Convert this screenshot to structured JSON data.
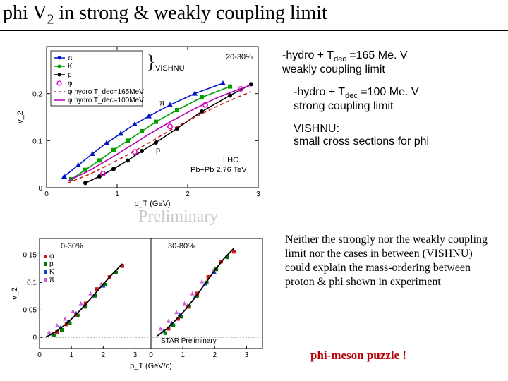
{
  "title": {
    "pre": "phi V",
    "sub": "2",
    "post": " in strong & weakly coupling limit"
  },
  "notes": {
    "weak": {
      "line1_pre": "-hydro + T",
      "line1_sub": "dec",
      "line1_post": " =165 Me. V",
      "line2": "weakly coupling limit"
    },
    "strong": {
      "line1_pre": "-hydro + T",
      "line1_sub": "dec",
      "line1_post": " =100 Me. V",
      "line2": "strong coupling limit"
    },
    "vishnu": {
      "label": "VISHNU:",
      "text": "small cross sections for phi"
    }
  },
  "preliminary": "Preliminary",
  "paragraph": "Neither the strongly nor the weakly coupling limit nor the cases in between (VISHNU) could explain the mass-ordering between proton & phi shown in experiment",
  "puzzle": "phi-meson puzzle !",
  "top_chart": {
    "type": "line+scatter",
    "xlim": [
      0,
      3
    ],
    "xticks": [
      0,
      1,
      2,
      3
    ],
    "ylim": [
      0,
      0.3
    ],
    "yticks": [
      0,
      0.1,
      0.2
    ],
    "xlabel": "p_T (GeV)",
    "ylabel": "v_2",
    "legend_box": {
      "items": [
        "π",
        "K",
        "p",
        "φ",
        "φ hydro T_dec=165MeV",
        "φ hydro T_dec=100MeV"
      ]
    },
    "vishnu_text": "VISHNU",
    "centrality": "20-30%",
    "annot": {
      "pi": "π",
      "p": "p"
    },
    "footer1": "LHC",
    "footer2": "Pb+Pb 2.76 TeV",
    "colors": {
      "pi": "#0018c8",
      "K": "#00a000",
      "p": "#000000",
      "phi_marker": "#e000c8",
      "phi_dash": "#c81e1e",
      "phi_solid": "#b800b8",
      "axis": "#000000",
      "box": "#000000"
    },
    "series": {
      "pi": {
        "x": [
          0.25,
          0.45,
          0.65,
          0.85,
          1.05,
          1.25,
          1.45,
          1.75,
          2.1,
          2.5
        ],
        "y": [
          0.024,
          0.048,
          0.072,
          0.095,
          0.115,
          0.135,
          0.152,
          0.176,
          0.2,
          0.222
        ]
      },
      "K": {
        "x": [
          0.35,
          0.55,
          0.75,
          0.95,
          1.15,
          1.35,
          1.55,
          1.85,
          2.2,
          2.6
        ],
        "y": [
          0.018,
          0.038,
          0.058,
          0.08,
          0.1,
          0.12,
          0.14,
          0.165,
          0.192,
          0.215
        ]
      },
      "p": {
        "x": [
          0.55,
          0.75,
          0.95,
          1.15,
          1.35,
          1.55,
          1.85,
          2.2,
          2.6,
          2.9
        ],
        "y": [
          0.01,
          0.024,
          0.04,
          0.058,
          0.078,
          0.096,
          0.126,
          0.162,
          0.196,
          0.22
        ]
      },
      "phi_pts": {
        "x": [
          0.8,
          1.25,
          1.75,
          2.25,
          2.75
        ],
        "y": [
          0.03,
          0.076,
          0.13,
          0.176,
          0.21
        ]
      },
      "phi_dash": {
        "x": [
          0.3,
          0.6,
          0.9,
          1.2,
          1.5,
          1.8,
          2.1,
          2.4,
          2.7,
          2.9
        ],
        "y": [
          0.01,
          0.028,
          0.05,
          0.074,
          0.1,
          0.126,
          0.15,
          0.172,
          0.192,
          0.204
        ]
      },
      "phi_solid": {
        "x": [
          0.3,
          0.6,
          0.9,
          1.2,
          1.5,
          1.8,
          2.1,
          2.4,
          2.7,
          2.9
        ],
        "y": [
          0.014,
          0.036,
          0.062,
          0.09,
          0.118,
          0.144,
          0.168,
          0.19,
          0.208,
          0.218
        ]
      }
    }
  },
  "bottom_chart": {
    "type": "scatter",
    "xlim": [
      0,
      3.5
    ],
    "xticks": [
      0,
      1,
      2,
      3
    ],
    "ylim": [
      -0.02,
      0.18
    ],
    "yticks": [
      0,
      0.05,
      0.1,
      0.15
    ],
    "xlabel": "p_T (GeV/c)",
    "ylabel": "v_2",
    "left_label": "0-30%",
    "right_label": "30-80%",
    "star_text": "STAR Preliminary",
    "colors": {
      "phi": "#d01818",
      "p": "#007a00",
      "K": "#1040d0",
      "pi": "#d060d0",
      "axis": "#000000",
      "line": "#000000"
    },
    "legend": {
      "items": [
        "φ",
        "p",
        "K",
        "π"
      ]
    },
    "left": {
      "phi": {
        "x": [
          0.55,
          0.85,
          1.15,
          1.45,
          1.8,
          2.2,
          2.6
        ],
        "y": [
          0.01,
          0.024,
          0.042,
          0.062,
          0.088,
          0.11,
          0.13
        ]
      },
      "p": {
        "x": [
          0.45,
          0.7,
          0.95,
          1.2,
          1.45,
          1.75,
          2.05,
          2.4
        ],
        "y": [
          0.004,
          0.014,
          0.026,
          0.04,
          0.056,
          0.076,
          0.096,
          0.118
        ]
      },
      "K": {
        "x": [
          0.4,
          0.65,
          0.9,
          1.15,
          1.4,
          1.7,
          2.0
        ],
        "y": [
          0.007,
          0.018,
          0.03,
          0.044,
          0.058,
          0.076,
          0.094
        ]
      },
      "pi": {
        "x": [
          0.3,
          0.55,
          0.8,
          1.05,
          1.3,
          1.6,
          1.95
        ],
        "y": [
          0.01,
          0.022,
          0.034,
          0.048,
          0.062,
          0.08,
          0.098
        ]
      },
      "curve_x": [
        0.2,
        0.5,
        0.8,
        1.1,
        1.4,
        1.7,
        2.0,
        2.3,
        2.6
      ],
      "curve_y": [
        0.001,
        0.01,
        0.023,
        0.039,
        0.057,
        0.077,
        0.097,
        0.116,
        0.134
      ]
    },
    "right": {
      "phi": {
        "x": [
          0.55,
          0.85,
          1.15,
          1.45,
          1.8,
          2.2,
          2.6
        ],
        "y": [
          0.016,
          0.034,
          0.056,
          0.08,
          0.11,
          0.138,
          0.156
        ]
      },
      "p": {
        "x": [
          0.45,
          0.7,
          0.95,
          1.2,
          1.45,
          1.75,
          2.05,
          2.4
        ],
        "y": [
          0.008,
          0.022,
          0.038,
          0.056,
          0.076,
          0.1,
          0.124,
          0.146
        ]
      },
      "K": {
        "x": [
          0.4,
          0.65,
          0.9,
          1.15,
          1.4,
          1.7,
          2.0
        ],
        "y": [
          0.012,
          0.026,
          0.042,
          0.058,
          0.076,
          0.098,
          0.118
        ]
      },
      "pi": {
        "x": [
          0.3,
          0.55,
          0.8,
          1.05,
          1.3,
          1.6,
          1.95
        ],
        "y": [
          0.016,
          0.03,
          0.046,
          0.062,
          0.08,
          0.102,
          0.122
        ]
      },
      "curve_x": [
        0.2,
        0.5,
        0.8,
        1.1,
        1.4,
        1.7,
        2.0,
        2.3,
        2.6
      ],
      "curve_y": [
        0.003,
        0.016,
        0.033,
        0.052,
        0.074,
        0.098,
        0.122,
        0.144,
        0.162
      ]
    }
  }
}
